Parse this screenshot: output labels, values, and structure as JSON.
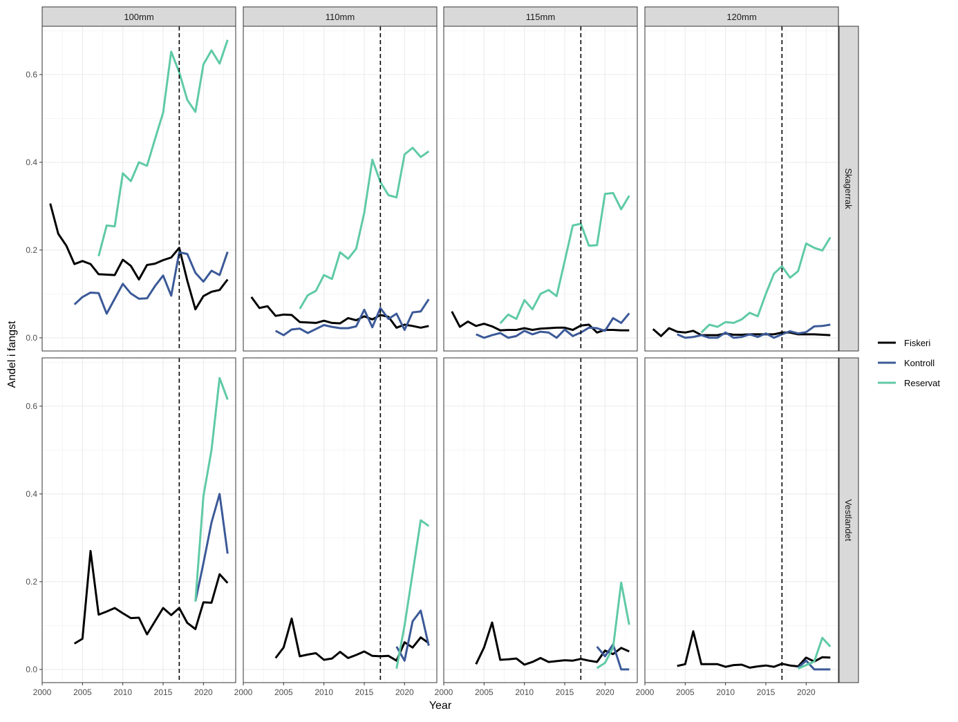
{
  "chart_data": {
    "type": "line",
    "title": "",
    "xlabel": "Year",
    "ylabel": "Andel i fangst",
    "xlim": [
      2000,
      2024
    ],
    "ylim": [
      -0.03,
      0.71
    ],
    "x_ticks": [
      2000,
      2005,
      2010,
      2015,
      2020
    ],
    "y_ticks": [
      0.0,
      0.2,
      0.4,
      0.6
    ],
    "y_tick_labels": [
      "0.0",
      "0.2",
      "0.4",
      "0.6"
    ],
    "reference_line_x": 2017,
    "grid": true,
    "legend_position": "right",
    "legend": [
      "Fiskeri",
      "Kontroll",
      "Reservat"
    ],
    "colors": {
      "Fiskeri": "#000000",
      "Kontroll": "#3b5998",
      "Reservat": "#5fcaa5"
    },
    "columns": [
      "100mm",
      "110mm",
      "115mm",
      "120mm"
    ],
    "rows": [
      "Skagerrak",
      "Vestlandet"
    ],
    "panels": [
      {
        "row": "Skagerrak",
        "column": "100mm",
        "series": [
          {
            "name": "Fiskeri",
            "x": [
              2001,
              2002,
              2003,
              2004,
              2005,
              2006,
              2007,
              2008,
              2009,
              2010,
              2011,
              2012,
              2013,
              2014,
              2015,
              2016,
              2017,
              2018,
              2019,
              2020,
              2021,
              2022,
              2023
            ],
            "y": [
              0.306,
              0.237,
              0.21,
              0.168,
              0.175,
              0.168,
              0.145,
              0.144,
              0.143,
              0.178,
              0.164,
              0.133,
              0.166,
              0.169,
              0.177,
              0.183,
              0.205,
              0.13,
              0.065,
              0.095,
              0.105,
              0.109,
              0.133
            ]
          },
          {
            "name": "Kontroll",
            "x": [
              2004,
              2005,
              2006,
              2007,
              2008,
              2009,
              2010,
              2011,
              2012,
              2013,
              2014,
              2015,
              2016,
              2017,
              2018,
              2019,
              2020,
              2021,
              2022,
              2023
            ],
            "y": [
              0.076,
              0.093,
              0.103,
              0.102,
              0.055,
              0.089,
              0.123,
              0.101,
              0.089,
              0.09,
              0.118,
              0.142,
              0.096,
              0.195,
              0.191,
              0.148,
              0.128,
              0.153,
              0.143,
              0.196
            ]
          },
          {
            "name": "Reservat",
            "x": [
              2007,
              2008,
              2009,
              2010,
              2011,
              2012,
              2013,
              2014,
              2015,
              2016,
              2017,
              2018,
              2019,
              2020,
              2021,
              2022,
              2023
            ],
            "y": [
              0.186,
              0.256,
              0.254,
              0.375,
              0.357,
              0.4,
              0.392,
              0.453,
              0.513,
              0.652,
              0.605,
              0.542,
              0.515,
              0.623,
              0.655,
              0.625,
              0.679
            ]
          }
        ]
      },
      {
        "row": "Skagerrak",
        "column": "110mm",
        "series": [
          {
            "name": "Fiskeri",
            "x": [
              2001,
              2002,
              2003,
              2004,
              2005,
              2006,
              2007,
              2008,
              2009,
              2010,
              2011,
              2012,
              2013,
              2014,
              2015,
              2016,
              2017,
              2018,
              2019,
              2020,
              2021,
              2022,
              2023
            ],
            "y": [
              0.093,
              0.068,
              0.072,
              0.05,
              0.053,
              0.052,
              0.036,
              0.035,
              0.034,
              0.039,
              0.034,
              0.033,
              0.045,
              0.04,
              0.049,
              0.042,
              0.052,
              0.048,
              0.023,
              0.03,
              0.027,
              0.023,
              0.027
            ]
          },
          {
            "name": "Kontroll",
            "x": [
              2004,
              2005,
              2006,
              2007,
              2008,
              2009,
              2010,
              2011,
              2012,
              2013,
              2014,
              2015,
              2016,
              2017,
              2018,
              2019,
              2020,
              2021,
              2022,
              2023
            ],
            "y": [
              0.016,
              0.006,
              0.019,
              0.021,
              0.011,
              0.02,
              0.029,
              0.025,
              0.022,
              0.022,
              0.026,
              0.064,
              0.024,
              0.068,
              0.043,
              0.055,
              0.018,
              0.058,
              0.06,
              0.088
            ]
          },
          {
            "name": "Reservat",
            "x": [
              2007,
              2008,
              2009,
              2010,
              2011,
              2012,
              2013,
              2014,
              2015,
              2016,
              2017,
              2018,
              2019,
              2020,
              2021,
              2022,
              2023
            ],
            "y": [
              0.066,
              0.097,
              0.107,
              0.143,
              0.134,
              0.195,
              0.18,
              0.203,
              0.285,
              0.406,
              0.355,
              0.325,
              0.32,
              0.418,
              0.433,
              0.412,
              0.425
            ]
          }
        ]
      },
      {
        "row": "Skagerrak",
        "column": "115mm",
        "series": [
          {
            "name": "Fiskeri",
            "x": [
              2001,
              2002,
              2003,
              2004,
              2005,
              2006,
              2007,
              2008,
              2009,
              2010,
              2011,
              2012,
              2013,
              2014,
              2015,
              2016,
              2017,
              2018,
              2019,
              2020,
              2021,
              2022,
              2023
            ],
            "y": [
              0.06,
              0.025,
              0.037,
              0.027,
              0.032,
              0.026,
              0.017,
              0.018,
              0.018,
              0.022,
              0.018,
              0.021,
              0.022,
              0.023,
              0.023,
              0.018,
              0.028,
              0.03,
              0.012,
              0.018,
              0.018,
              0.017,
              0.017
            ]
          },
          {
            "name": "Kontroll",
            "x": [
              2004,
              2005,
              2006,
              2007,
              2008,
              2009,
              2010,
              2011,
              2012,
              2013,
              2014,
              2015,
              2016,
              2017,
              2018,
              2019,
              2020,
              2021,
              2022,
              2023
            ],
            "y": [
              0.008,
              0.0,
              0.006,
              0.011,
              0.0,
              0.004,
              0.016,
              0.008,
              0.014,
              0.012,
              0.0,
              0.019,
              0.004,
              0.012,
              0.023,
              0.022,
              0.016,
              0.045,
              0.034,
              0.056
            ]
          },
          {
            "name": "Reservat",
            "x": [
              2007,
              2008,
              2009,
              2010,
              2011,
              2012,
              2013,
              2014,
              2015,
              2016,
              2017,
              2018,
              2019,
              2020,
              2021,
              2022,
              2023
            ],
            "y": [
              0.033,
              0.053,
              0.043,
              0.086,
              0.065,
              0.1,
              0.109,
              0.095,
              0.175,
              0.256,
              0.26,
              0.21,
              0.211,
              0.328,
              0.33,
              0.293,
              0.324
            ]
          }
        ]
      },
      {
        "row": "Skagerrak",
        "column": "120mm",
        "series": [
          {
            "name": "Fiskeri",
            "x": [
              2001,
              2002,
              2003,
              2004,
              2005,
              2006,
              2007,
              2008,
              2009,
              2010,
              2011,
              2012,
              2013,
              2014,
              2015,
              2016,
              2017,
              2018,
              2019,
              2020,
              2021,
              2022,
              2023
            ],
            "y": [
              0.02,
              0.004,
              0.022,
              0.014,
              0.012,
              0.016,
              0.006,
              0.006,
              0.006,
              0.01,
              0.007,
              0.007,
              0.008,
              0.008,
              0.008,
              0.008,
              0.012,
              0.012,
              0.008,
              0.008,
              0.008,
              0.007,
              0.006
            ]
          },
          {
            "name": "Kontroll",
            "x": [
              2004,
              2005,
              2006,
              2007,
              2008,
              2009,
              2010,
              2011,
              2012,
              2013,
              2014,
              2015,
              2016,
              2017,
              2018,
              2019,
              2020,
              2021,
              2022,
              2023
            ],
            "y": [
              0.008,
              0.0,
              0.002,
              0.006,
              0.0,
              0.0,
              0.012,
              0.0,
              0.002,
              0.008,
              0.002,
              0.01,
              0.0,
              0.008,
              0.015,
              0.01,
              0.013,
              0.026,
              0.027,
              0.03
            ]
          },
          {
            "name": "Reservat",
            "x": [
              2007,
              2008,
              2009,
              2010,
              2011,
              2012,
              2013,
              2014,
              2015,
              2016,
              2017,
              2018,
              2019,
              2020,
              2021,
              2022,
              2023
            ],
            "y": [
              0.012,
              0.03,
              0.025,
              0.036,
              0.034,
              0.042,
              0.057,
              0.049,
              0.1,
              0.146,
              0.163,
              0.137,
              0.152,
              0.215,
              0.205,
              0.199,
              0.229
            ]
          }
        ]
      },
      {
        "row": "Vestlandet",
        "column": "100mm",
        "series": [
          {
            "name": "Fiskeri",
            "x": [
              2004,
              2005,
              2006,
              2007,
              2008,
              2009,
              2010,
              2011,
              2012,
              2013,
              2014,
              2015,
              2016,
              2017,
              2018,
              2019,
              2020,
              2021,
              2022,
              2023
            ],
            "y": [
              0.059,
              0.07,
              0.27,
              0.125,
              0.132,
              0.14,
              0.128,
              0.117,
              0.118,
              0.08,
              0.11,
              0.14,
              0.124,
              0.14,
              0.106,
              0.092,
              0.153,
              0.152,
              0.217,
              0.197
            ]
          },
          {
            "name": "Kontroll",
            "x": [
              2019,
              2020,
              2021,
              2022,
              2023
            ],
            "y": [
              0.155,
              0.242,
              0.335,
              0.4,
              0.264
            ]
          },
          {
            "name": "Reservat",
            "x": [
              2019,
              2020,
              2021,
              2022,
              2023
            ],
            "y": [
              0.155,
              0.395,
              0.5,
              0.664,
              0.615
            ]
          }
        ]
      },
      {
        "row": "Vestlandet",
        "column": "110mm",
        "series": [
          {
            "name": "Fiskeri",
            "x": [
              2004,
              2005,
              2006,
              2007,
              2008,
              2009,
              2010,
              2011,
              2012,
              2013,
              2014,
              2015,
              2016,
              2017,
              2018,
              2019,
              2020,
              2021,
              2022,
              2023
            ],
            "y": [
              0.026,
              0.05,
              0.116,
              0.03,
              0.034,
              0.037,
              0.022,
              0.025,
              0.04,
              0.026,
              0.033,
              0.041,
              0.031,
              0.03,
              0.031,
              0.02,
              0.062,
              0.05,
              0.073,
              0.06
            ]
          },
          {
            "name": "Kontroll",
            "x": [
              2019,
              2020,
              2021,
              2022,
              2023
            ],
            "y": [
              0.052,
              0.02,
              0.11,
              0.134,
              0.054
            ]
          },
          {
            "name": "Reservat",
            "x": [
              2019,
              2020,
              2021,
              2022,
              2023
            ],
            "y": [
              0.002,
              0.1,
              0.22,
              0.34,
              0.327
            ]
          }
        ]
      },
      {
        "row": "Vestlandet",
        "column": "115mm",
        "series": [
          {
            "name": "Fiskeri",
            "x": [
              2004,
              2005,
              2006,
              2007,
              2008,
              2009,
              2010,
              2011,
              2012,
              2013,
              2014,
              2015,
              2016,
              2017,
              2018,
              2019,
              2020,
              2021,
              2022,
              2023
            ],
            "y": [
              0.012,
              0.05,
              0.107,
              0.022,
              0.023,
              0.025,
              0.011,
              0.017,
              0.026,
              0.017,
              0.019,
              0.021,
              0.02,
              0.024,
              0.02,
              0.017,
              0.043,
              0.035,
              0.049,
              0.041
            ]
          },
          {
            "name": "Kontroll",
            "x": [
              2019,
              2020,
              2021,
              2022,
              2023
            ],
            "y": [
              0.052,
              0.03,
              0.057,
              0.0,
              0.0
            ]
          },
          {
            "name": "Reservat",
            "x": [
              2019,
              2020,
              2021,
              2022,
              2023
            ],
            "y": [
              0.003,
              0.015,
              0.05,
              0.198,
              0.102
            ]
          }
        ]
      },
      {
        "row": "Vestlandet",
        "column": "120mm",
        "series": [
          {
            "name": "Fiskeri",
            "x": [
              2004,
              2005,
              2006,
              2007,
              2008,
              2009,
              2010,
              2011,
              2012,
              2013,
              2014,
              2015,
              2016,
              2017,
              2018,
              2019,
              2020,
              2021,
              2022,
              2023
            ],
            "y": [
              0.008,
              0.012,
              0.087,
              0.012,
              0.012,
              0.012,
              0.006,
              0.01,
              0.011,
              0.004,
              0.007,
              0.009,
              0.006,
              0.013,
              0.009,
              0.007,
              0.027,
              0.018,
              0.028,
              0.027
            ]
          },
          {
            "name": "Kontroll",
            "x": [
              2019,
              2020,
              2021,
              2022,
              2023
            ],
            "y": [
              0.004,
              0.02,
              0.0,
              0.0,
              0.0
            ]
          },
          {
            "name": "Reservat",
            "x": [
              2019,
              2020,
              2021,
              2022,
              2023
            ],
            "y": [
              0.002,
              0.01,
              0.018,
              0.072,
              0.052
            ]
          }
        ]
      }
    ]
  }
}
